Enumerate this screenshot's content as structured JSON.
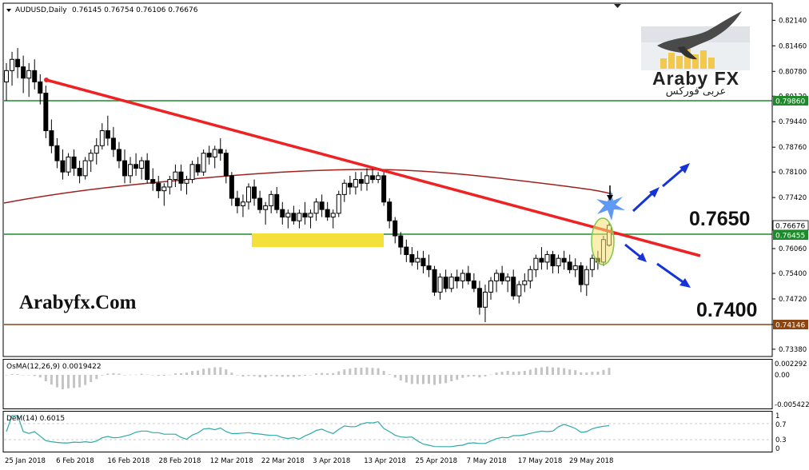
{
  "header": {
    "symbol": "AUDUSD,Daily",
    "ohlc": "0.76145 0.76754 0.76106 0.76676"
  },
  "price_axis": {
    "labels": [
      "0.82140",
      "0.81460",
      "0.80780",
      "0.80120",
      "0.79440",
      "0.78760",
      "0.78100",
      "0.77420",
      "0.76060",
      "0.75400",
      "0.74720",
      "0.74040",
      "0.73380"
    ],
    "tags": [
      {
        "text": "0.79860",
        "color": "#1f8a2b"
      },
      {
        "text": "0.76676",
        "color": "#ffffff"
      },
      {
        "text": "0.76455",
        "color": "#1f8a2b"
      },
      {
        "text": "0.74146",
        "color": "#8b4513"
      }
    ]
  },
  "time_axis": {
    "labels": [
      "25 Jan 2018",
      "6 Feb 2018",
      "16 Feb 2018",
      "28 Feb 2018",
      "12 Mar 2018",
      "22 Mar 2018",
      "3 Apr 2018",
      "13 Apr 2018",
      "25 Apr 2018",
      "7 May 2018",
      "17 May 2018",
      "29 May 2018"
    ]
  },
  "overlays": {
    "logo_title": "Araby FX",
    "logo_arabic": "عربى فوركس",
    "website": "Arabyfx.Com",
    "level_upper": "0.7650",
    "level_lower": "0.7400"
  },
  "osma": {
    "label": "OsMA(12,26,9) 0.0019422",
    "axis": [
      "0.002292",
      "0.00",
      "-0.005422"
    ]
  },
  "dem": {
    "label": "DeM(14) 0.6015",
    "axis": [
      "1",
      "0.7",
      "0.3",
      "0"
    ]
  },
  "colors": {
    "trendline": "#ee2222",
    "ma": "#a02020",
    "resistance": "#1f8a2b",
    "support": "#8b4513",
    "zone": "#f5df3a",
    "arrow": "#1533d6",
    "dem_line": "#2eaaaa"
  },
  "chart_data": {
    "type": "candlestick",
    "price_levels": {
      "resistance_top": 0.7986,
      "current": 0.76676,
      "support_mid": 0.76455,
      "support_low": 0.74146
    },
    "annotated_levels": [
      0.765,
      0.74
    ],
    "ylim": [
      0.7325,
      0.8234
    ],
    "candles": [
      {
        "o": 0.805,
        "h": 0.81,
        "l": 0.8,
        "c": 0.808
      },
      {
        "o": 0.808,
        "h": 0.813,
        "l": 0.804,
        "c": 0.811
      },
      {
        "o": 0.811,
        "h": 0.814,
        "l": 0.806,
        "c": 0.809
      },
      {
        "o": 0.809,
        "h": 0.812,
        "l": 0.802,
        "c": 0.806
      },
      {
        "o": 0.806,
        "h": 0.81,
        "l": 0.801,
        "c": 0.808
      },
      {
        "o": 0.808,
        "h": 0.811,
        "l": 0.803,
        "c": 0.805
      },
      {
        "o": 0.805,
        "h": 0.807,
        "l": 0.799,
        "c": 0.802
      },
      {
        "o": 0.802,
        "h": 0.804,
        "l": 0.79,
        "c": 0.792
      },
      {
        "o": 0.792,
        "h": 0.795,
        "l": 0.786,
        "c": 0.788
      },
      {
        "o": 0.788,
        "h": 0.79,
        "l": 0.782,
        "c": 0.784
      },
      {
        "o": 0.784,
        "h": 0.787,
        "l": 0.779,
        "c": 0.781
      },
      {
        "o": 0.781,
        "h": 0.786,
        "l": 0.78,
        "c": 0.785
      },
      {
        "o": 0.785,
        "h": 0.787,
        "l": 0.78,
        "c": 0.782
      },
      {
        "o": 0.782,
        "h": 0.784,
        "l": 0.778,
        "c": 0.78
      },
      {
        "o": 0.78,
        "h": 0.785,
        "l": 0.779,
        "c": 0.784
      },
      {
        "o": 0.784,
        "h": 0.787,
        "l": 0.781,
        "c": 0.786
      },
      {
        "o": 0.786,
        "h": 0.79,
        "l": 0.783,
        "c": 0.788
      },
      {
        "o": 0.788,
        "h": 0.794,
        "l": 0.787,
        "c": 0.792
      },
      {
        "o": 0.792,
        "h": 0.796,
        "l": 0.788,
        "c": 0.79
      },
      {
        "o": 0.79,
        "h": 0.793,
        "l": 0.785,
        "c": 0.787
      },
      {
        "o": 0.787,
        "h": 0.789,
        "l": 0.782,
        "c": 0.784
      },
      {
        "o": 0.784,
        "h": 0.787,
        "l": 0.778,
        "c": 0.78
      },
      {
        "o": 0.78,
        "h": 0.785,
        "l": 0.778,
        "c": 0.783
      },
      {
        "o": 0.783,
        "h": 0.786,
        "l": 0.78,
        "c": 0.782
      },
      {
        "o": 0.782,
        "h": 0.785,
        "l": 0.779,
        "c": 0.784
      },
      {
        "o": 0.784,
        "h": 0.786,
        "l": 0.778,
        "c": 0.779
      },
      {
        "o": 0.779,
        "h": 0.782,
        "l": 0.776,
        "c": 0.778
      },
      {
        "o": 0.778,
        "h": 0.78,
        "l": 0.774,
        "c": 0.776
      },
      {
        "o": 0.776,
        "h": 0.778,
        "l": 0.772,
        "c": 0.777
      },
      {
        "o": 0.777,
        "h": 0.78,
        "l": 0.775,
        "c": 0.779
      },
      {
        "o": 0.779,
        "h": 0.783,
        "l": 0.777,
        "c": 0.781
      },
      {
        "o": 0.781,
        "h": 0.783,
        "l": 0.776,
        "c": 0.778
      },
      {
        "o": 0.778,
        "h": 0.78,
        "l": 0.775,
        "c": 0.779
      },
      {
        "o": 0.779,
        "h": 0.784,
        "l": 0.778,
        "c": 0.783
      },
      {
        "o": 0.783,
        "h": 0.785,
        "l": 0.78,
        "c": 0.781
      },
      {
        "o": 0.781,
        "h": 0.787,
        "l": 0.78,
        "c": 0.786
      },
      {
        "o": 0.786,
        "h": 0.788,
        "l": 0.783,
        "c": 0.785
      },
      {
        "o": 0.785,
        "h": 0.788,
        "l": 0.782,
        "c": 0.787
      },
      {
        "o": 0.787,
        "h": 0.79,
        "l": 0.784,
        "c": 0.786
      },
      {
        "o": 0.786,
        "h": 0.787,
        "l": 0.778,
        "c": 0.78
      },
      {
        "o": 0.78,
        "h": 0.781,
        "l": 0.772,
        "c": 0.774
      },
      {
        "o": 0.774,
        "h": 0.776,
        "l": 0.77,
        "c": 0.772
      },
      {
        "o": 0.772,
        "h": 0.775,
        "l": 0.769,
        "c": 0.773
      },
      {
        "o": 0.773,
        "h": 0.778,
        "l": 0.771,
        "c": 0.777
      },
      {
        "o": 0.777,
        "h": 0.779,
        "l": 0.772,
        "c": 0.774
      },
      {
        "o": 0.774,
        "h": 0.776,
        "l": 0.77,
        "c": 0.771
      },
      {
        "o": 0.771,
        "h": 0.773,
        "l": 0.767,
        "c": 0.772
      },
      {
        "o": 0.772,
        "h": 0.776,
        "l": 0.77,
        "c": 0.775
      },
      {
        "o": 0.775,
        "h": 0.777,
        "l": 0.77,
        "c": 0.771
      },
      {
        "o": 0.771,
        "h": 0.773,
        "l": 0.767,
        "c": 0.769
      },
      {
        "o": 0.769,
        "h": 0.771,
        "l": 0.766,
        "c": 0.77
      },
      {
        "o": 0.77,
        "h": 0.772,
        "l": 0.767,
        "c": 0.768
      },
      {
        "o": 0.768,
        "h": 0.771,
        "l": 0.766,
        "c": 0.77
      },
      {
        "o": 0.77,
        "h": 0.773,
        "l": 0.767,
        "c": 0.769
      },
      {
        "o": 0.769,
        "h": 0.771,
        "l": 0.766,
        "c": 0.77
      },
      {
        "o": 0.77,
        "h": 0.774,
        "l": 0.768,
        "c": 0.773
      },
      {
        "o": 0.773,
        "h": 0.775,
        "l": 0.769,
        "c": 0.771
      },
      {
        "o": 0.771,
        "h": 0.773,
        "l": 0.768,
        "c": 0.769
      },
      {
        "o": 0.769,
        "h": 0.771,
        "l": 0.766,
        "c": 0.77
      },
      {
        "o": 0.77,
        "h": 0.776,
        "l": 0.769,
        "c": 0.775
      },
      {
        "o": 0.775,
        "h": 0.779,
        "l": 0.773,
        "c": 0.778
      },
      {
        "o": 0.778,
        "h": 0.78,
        "l": 0.775,
        "c": 0.777
      },
      {
        "o": 0.777,
        "h": 0.781,
        "l": 0.775,
        "c": 0.779
      },
      {
        "o": 0.779,
        "h": 0.781,
        "l": 0.776,
        "c": 0.778
      },
      {
        "o": 0.778,
        "h": 0.782,
        "l": 0.776,
        "c": 0.78
      },
      {
        "o": 0.78,
        "h": 0.782,
        "l": 0.778,
        "c": 0.779
      },
      {
        "o": 0.779,
        "h": 0.781,
        "l": 0.778,
        "c": 0.78
      },
      {
        "o": 0.78,
        "h": 0.781,
        "l": 0.772,
        "c": 0.773
      },
      {
        "o": 0.773,
        "h": 0.774,
        "l": 0.766,
        "c": 0.768
      },
      {
        "o": 0.768,
        "h": 0.769,
        "l": 0.762,
        "c": 0.764
      },
      {
        "o": 0.764,
        "h": 0.765,
        "l": 0.759,
        "c": 0.761
      },
      {
        "o": 0.761,
        "h": 0.763,
        "l": 0.757,
        "c": 0.759
      },
      {
        "o": 0.759,
        "h": 0.761,
        "l": 0.756,
        "c": 0.757
      },
      {
        "o": 0.757,
        "h": 0.76,
        "l": 0.755,
        "c": 0.758
      },
      {
        "o": 0.758,
        "h": 0.76,
        "l": 0.754,
        "c": 0.756
      },
      {
        "o": 0.756,
        "h": 0.759,
        "l": 0.753,
        "c": 0.755
      },
      {
        "o": 0.755,
        "h": 0.756,
        "l": 0.748,
        "c": 0.749
      },
      {
        "o": 0.749,
        "h": 0.754,
        "l": 0.747,
        "c": 0.753
      },
      {
        "o": 0.753,
        "h": 0.755,
        "l": 0.749,
        "c": 0.75
      },
      {
        "o": 0.75,
        "h": 0.754,
        "l": 0.749,
        "c": 0.753
      },
      {
        "o": 0.753,
        "h": 0.755,
        "l": 0.75,
        "c": 0.752
      },
      {
        "o": 0.752,
        "h": 0.755,
        "l": 0.75,
        "c": 0.754
      },
      {
        "o": 0.754,
        "h": 0.756,
        "l": 0.751,
        "c": 0.752
      },
      {
        "o": 0.752,
        "h": 0.754,
        "l": 0.749,
        "c": 0.75
      },
      {
        "o": 0.75,
        "h": 0.752,
        "l": 0.743,
        "c": 0.745
      },
      {
        "o": 0.745,
        "h": 0.751,
        "l": 0.741,
        "c": 0.749
      },
      {
        "o": 0.749,
        "h": 0.753,
        "l": 0.747,
        "c": 0.752
      },
      {
        "o": 0.752,
        "h": 0.755,
        "l": 0.749,
        "c": 0.754
      },
      {
        "o": 0.754,
        "h": 0.756,
        "l": 0.751,
        "c": 0.752
      },
      {
        "o": 0.752,
        "h": 0.754,
        "l": 0.749,
        "c": 0.753
      },
      {
        "o": 0.753,
        "h": 0.755,
        "l": 0.747,
        "c": 0.748
      },
      {
        "o": 0.748,
        "h": 0.752,
        "l": 0.746,
        "c": 0.751
      },
      {
        "o": 0.751,
        "h": 0.754,
        "l": 0.749,
        "c": 0.752
      },
      {
        "o": 0.752,
        "h": 0.756,
        "l": 0.75,
        "c": 0.755
      },
      {
        "o": 0.755,
        "h": 0.759,
        "l": 0.753,
        "c": 0.758
      },
      {
        "o": 0.758,
        "h": 0.761,
        "l": 0.755,
        "c": 0.757
      },
      {
        "o": 0.757,
        "h": 0.76,
        "l": 0.755,
        "c": 0.759
      },
      {
        "o": 0.759,
        "h": 0.76,
        "l": 0.754,
        "c": 0.756
      },
      {
        "o": 0.756,
        "h": 0.759,
        "l": 0.754,
        "c": 0.758
      },
      {
        "o": 0.758,
        "h": 0.76,
        "l": 0.755,
        "c": 0.757
      },
      {
        "o": 0.757,
        "h": 0.759,
        "l": 0.754,
        "c": 0.755
      },
      {
        "o": 0.755,
        "h": 0.758,
        "l": 0.753,
        "c": 0.756
      },
      {
        "o": 0.756,
        "h": 0.757,
        "l": 0.749,
        "c": 0.751
      },
      {
        "o": 0.751,
        "h": 0.756,
        "l": 0.748,
        "c": 0.755
      },
      {
        "o": 0.755,
        "h": 0.759,
        "l": 0.753,
        "c": 0.758
      },
      {
        "o": 0.758,
        "h": 0.76,
        "l": 0.755,
        "c": 0.757
      },
      {
        "o": 0.757,
        "h": 0.764,
        "l": 0.756,
        "c": 0.763
      },
      {
        "o": 0.7615,
        "h": 0.7675,
        "l": 0.7611,
        "c": 0.7668
      }
    ]
  }
}
